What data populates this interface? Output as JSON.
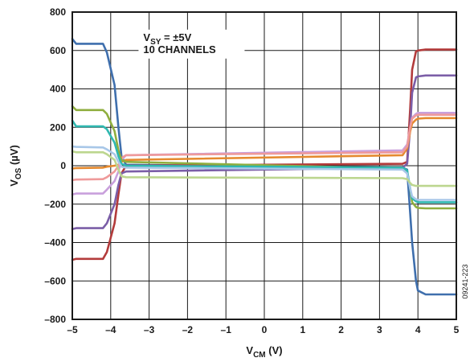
{
  "chart_data": {
    "type": "line",
    "xlabel": {
      "main": "V",
      "sub": "CM",
      "tail": " (V)"
    },
    "ylabel": {
      "main": "V",
      "sub": "OS",
      "tail": " (µV)"
    },
    "xlim": [
      -5,
      5
    ],
    "ylim": [
      -800,
      800
    ],
    "x_ticks": [
      -5,
      -4,
      -3,
      -2,
      -1,
      0,
      1,
      2,
      3,
      4,
      5
    ],
    "x_tick_labels": [
      "–5",
      "–4",
      "–3",
      "–2",
      "–1",
      "0",
      "1",
      "2",
      "3",
      "4",
      "5"
    ],
    "y_ticks": [
      -800,
      -600,
      -400,
      -200,
      0,
      200,
      400,
      600,
      800
    ],
    "y_tick_labels": [
      "–800",
      "–600",
      "–400",
      "–200",
      "0",
      "200",
      "400",
      "600",
      "800"
    ],
    "grid": true,
    "annotation": {
      "line1_main": "V",
      "line1_sub": "SY",
      "line1_tail": " = ±5V",
      "line2": "10 CHANNELS",
      "anchor_x": -3.15,
      "anchor_y": 650
    },
    "figure_code": "09241-223",
    "series": [
      {
        "color": "#3f6fad",
        "x": [
          -5,
          -4.9,
          -4.2,
          -4.1,
          -3.9,
          -3.8,
          -3.72,
          -3.6,
          3.6,
          3.72,
          3.8,
          3.85,
          3.95,
          4.0,
          4.2,
          5
        ],
        "y": [
          660,
          635,
          635,
          590,
          420,
          200,
          50,
          5,
          -10,
          -20,
          -250,
          -400,
          -600,
          -650,
          -670,
          -670
        ]
      },
      {
        "color": "#b33b3b",
        "x": [
          -5,
          -4.9,
          -4.2,
          -4.1,
          -3.9,
          -3.8,
          -3.72,
          -3.6,
          3.6,
          3.72,
          3.8,
          3.85,
          3.95,
          4.0,
          4.2,
          5
        ],
        "y": [
          -490,
          -485,
          -485,
          -450,
          -300,
          -150,
          -40,
          0,
          10,
          20,
          300,
          500,
          595,
          600,
          605,
          605
        ]
      },
      {
        "color": "#7b5ea7",
        "x": [
          -5,
          -4.9,
          -4.2,
          -4.1,
          -3.9,
          -3.8,
          -3.72,
          -3.6,
          3.6,
          3.72,
          3.8,
          3.85,
          3.95,
          4.0,
          4.2,
          5
        ],
        "y": [
          -330,
          -325,
          -325,
          -300,
          -200,
          -100,
          -40,
          -30,
          -10,
          10,
          200,
          380,
          460,
          465,
          470,
          470
        ]
      },
      {
        "color": "#c9a0dc",
        "x": [
          -5,
          -4.9,
          -4.2,
          -4.1,
          -3.9,
          -3.8,
          -3.72,
          -3.6,
          3.6,
          3.72,
          3.8,
          3.85,
          3.95,
          4.0,
          4.2,
          5
        ],
        "y": [
          -150,
          -145,
          -145,
          -125,
          -80,
          -30,
          30,
          55,
          80,
          110,
          200,
          250,
          270,
          275,
          275,
          275
        ]
      },
      {
        "color": "#e58a2f",
        "x": [
          -5,
          -4.9,
          -4.2,
          -4.1,
          -3.9,
          -3.8,
          -3.72,
          -3.6,
          3.6,
          3.72,
          3.8,
          3.85,
          3.95,
          4.0,
          4.2,
          5
        ],
        "y": [
          -15,
          -12,
          -10,
          -5,
          0,
          5,
          20,
          30,
          55,
          90,
          180,
          220,
          240,
          245,
          248,
          248
        ]
      },
      {
        "color": "#ef9a9a",
        "x": [
          -5,
          -4.9,
          -4.2,
          -4.1,
          -3.9,
          -3.8,
          -3.72,
          -3.6,
          3.6,
          3.72,
          3.8,
          3.85,
          3.95,
          4.0,
          4.2,
          5
        ],
        "y": [
          -75,
          -72,
          -70,
          -60,
          -30,
          0,
          40,
          55,
          70,
          100,
          200,
          245,
          262,
          265,
          265,
          265
        ]
      },
      {
        "color": "#8fae3e",
        "x": [
          -5,
          -4.9,
          -4.2,
          -4.1,
          -3.9,
          -3.8,
          -3.72,
          -3.6,
          3.6,
          3.72,
          3.8,
          3.85,
          3.95,
          4.0,
          4.2,
          5
        ],
        "y": [
          310,
          290,
          290,
          270,
          180,
          80,
          30,
          20,
          -15,
          -30,
          -120,
          -190,
          -215,
          -220,
          -222,
          -222
        ]
      },
      {
        "color": "#2fb8b0",
        "x": [
          -5,
          -4.9,
          -4.2,
          -4.1,
          -3.9,
          -3.8,
          -3.72,
          -3.6,
          3.6,
          3.72,
          3.8,
          3.85,
          3.95,
          4.0,
          4.2,
          5
        ],
        "y": [
          235,
          205,
          205,
          190,
          120,
          50,
          10,
          0,
          -10,
          -25,
          -120,
          -170,
          -185,
          -190,
          -190,
          -190
        ]
      },
      {
        "color": "#a8c7e8",
        "x": [
          -5,
          -4.9,
          -4.2,
          -4.1,
          -3.9,
          -3.8,
          -3.72,
          -3.6,
          3.6,
          3.72,
          3.8,
          3.85,
          3.95,
          4.0,
          4.2,
          5
        ],
        "y": [
          100,
          98,
          95,
          85,
          60,
          20,
          -5,
          -10,
          -20,
          -40,
          -120,
          -160,
          -175,
          -178,
          -178,
          -178
        ]
      },
      {
        "color": "#bcd68f",
        "x": [
          -5,
          -4.9,
          -4.2,
          -4.1,
          -3.9,
          -3.8,
          -3.72,
          -3.6,
          3.6,
          3.72,
          3.8,
          3.85,
          3.95,
          4.0,
          4.2,
          5
        ],
        "y": [
          75,
          70,
          70,
          60,
          30,
          -20,
          -55,
          -60,
          -65,
          -70,
          -90,
          -100,
          -105,
          -105,
          -105,
          -105
        ]
      }
    ]
  }
}
